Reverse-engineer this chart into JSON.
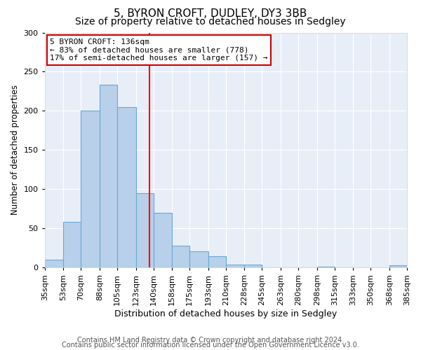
{
  "title": "5, BYRON CROFT, DUDLEY, DY3 3BB",
  "subtitle": "Size of property relative to detached houses in Sedgley",
  "xlabel": "Distribution of detached houses by size in Sedgley",
  "ylabel": "Number of detached properties",
  "bin_labels": [
    "35sqm",
    "53sqm",
    "70sqm",
    "88sqm",
    "105sqm",
    "123sqm",
    "140sqm",
    "158sqm",
    "175sqm",
    "193sqm",
    "210sqm",
    "228sqm",
    "245sqm",
    "263sqm",
    "280sqm",
    "298sqm",
    "315sqm",
    "333sqm",
    "350sqm",
    "368sqm",
    "385sqm"
  ],
  "bar_values": [
    10,
    58,
    200,
    233,
    205,
    95,
    70,
    28,
    21,
    15,
    4,
    4,
    0,
    0,
    0,
    1,
    0,
    0,
    0,
    3
  ],
  "bin_edges": [
    35,
    53,
    70,
    88,
    105,
    123,
    140,
    158,
    175,
    193,
    210,
    228,
    245,
    263,
    280,
    298,
    315,
    333,
    350,
    368,
    385
  ],
  "bar_color": "#b8d0ea",
  "bar_edge_color": "#6aaad4",
  "reference_line_x": 136,
  "ylim": [
    0,
    300
  ],
  "yticks": [
    0,
    50,
    100,
    150,
    200,
    250,
    300
  ],
  "annotation_title": "5 BYRON CROFT: 136sqm",
  "annotation_line1": "← 83% of detached houses are smaller (778)",
  "annotation_line2": "17% of semi-detached houses are larger (157) →",
  "annotation_box_facecolor": "#ffffff",
  "annotation_box_edgecolor": "#cc0000",
  "footer_line1": "Contains HM Land Registry data © Crown copyright and database right 2024.",
  "footer_line2": "Contains public sector information licensed under the Open Government Licence v3.0.",
  "fig_facecolor": "#ffffff",
  "plot_facecolor": "#e8eef8",
  "grid_color": "#ffffff",
  "title_fontsize": 11,
  "subtitle_fontsize": 10,
  "xlabel_fontsize": 9,
  "ylabel_fontsize": 8.5,
  "tick_fontsize": 8,
  "footer_fontsize": 7
}
